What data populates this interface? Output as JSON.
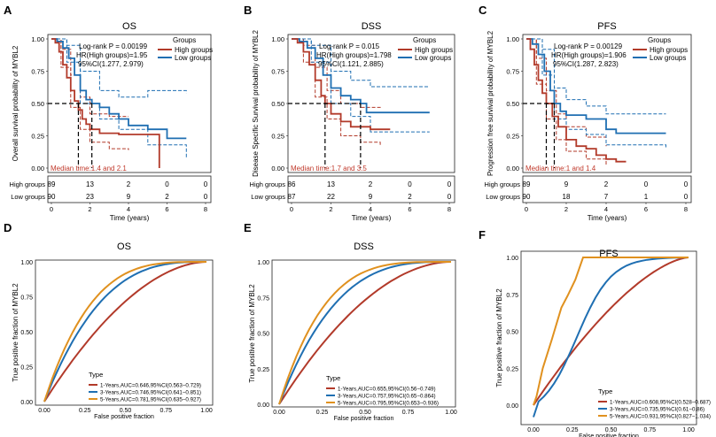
{
  "colors": {
    "high": "#b23a2a",
    "low": "#1f6fb2",
    "y1": "#b23a2a",
    "y3": "#1f6fb2",
    "y5": "#e0911f",
    "median": "#c0392b"
  },
  "km_panels": [
    {
      "letter": "A",
      "title": "OS",
      "ylabel": "Overall survival probability of MYBL2",
      "stats": [
        "Log-rank P = 0.00199",
        "HR(High groups)=1.95",
        "95%CI(1.277, 2.979)"
      ],
      "legend_title": "Groups",
      "legend_high": "High groups",
      "legend_low": "Low groups",
      "median_text": "Median time:1.4 and 2.1",
      "medians": [
        1.4,
        2.1
      ],
      "yticks": [
        "0.00",
        "0.25",
        "0.50",
        "0.75",
        "1.00"
      ],
      "xticks": [
        "0",
        "2",
        "4",
        "6",
        "8"
      ],
      "xlabel": "Time (years)",
      "risk_labels": [
        "High groups",
        "Low groups"
      ],
      "risk_high": [
        "89",
        "13",
        "2",
        "0",
        "0"
      ],
      "risk_low": [
        "90",
        "23",
        "9",
        "2",
        "0"
      ],
      "high_curve": [
        [
          0,
          1.0
        ],
        [
          0.2,
          0.97
        ],
        [
          0.4,
          0.9
        ],
        [
          0.6,
          0.8
        ],
        [
          0.8,
          0.7
        ],
        [
          1.0,
          0.6
        ],
        [
          1.2,
          0.52
        ],
        [
          1.4,
          0.45
        ],
        [
          1.6,
          0.38
        ],
        [
          1.8,
          0.34
        ],
        [
          2.0,
          0.3
        ],
        [
          2.5,
          0.27
        ],
        [
          3.5,
          0.26
        ],
        [
          5.6,
          0.26
        ],
        [
          5.6,
          0.0
        ]
      ],
      "low_curve": [
        [
          0,
          1.0
        ],
        [
          0.3,
          0.98
        ],
        [
          0.6,
          0.93
        ],
        [
          0.9,
          0.85
        ],
        [
          1.2,
          0.72
        ],
        [
          1.5,
          0.6
        ],
        [
          1.8,
          0.53
        ],
        [
          2.1,
          0.5
        ],
        [
          2.5,
          0.47
        ],
        [
          3.0,
          0.42
        ],
        [
          3.5,
          0.38
        ],
        [
          4.0,
          0.33
        ],
        [
          5.0,
          0.3
        ],
        [
          6.0,
          0.23
        ],
        [
          7.0,
          0.23
        ]
      ],
      "high_ci": [
        [
          [
            0,
            1.0
          ],
          [
            0.5,
            0.92
          ],
          [
            1.0,
            0.72
          ],
          [
            1.5,
            0.55
          ],
          [
            2.0,
            0.42
          ],
          [
            3.0,
            0.4
          ],
          [
            4.0,
            0.4
          ]
        ],
        [
          [
            0,
            1.0
          ],
          [
            0.5,
            0.78
          ],
          [
            1.0,
            0.47
          ],
          [
            1.5,
            0.3
          ],
          [
            2.0,
            0.2
          ],
          [
            3.0,
            0.15
          ],
          [
            4.0,
            0.14
          ]
        ]
      ],
      "low_ci": [
        [
          [
            0,
            1.0
          ],
          [
            0.8,
            0.95
          ],
          [
            1.5,
            0.75
          ],
          [
            2.5,
            0.6
          ],
          [
            3.5,
            0.55
          ],
          [
            5.0,
            0.6
          ],
          [
            7.0,
            0.58
          ]
        ],
        [
          [
            0,
            1.0
          ],
          [
            0.8,
            0.82
          ],
          [
            1.5,
            0.5
          ],
          [
            2.5,
            0.38
          ],
          [
            3.5,
            0.3
          ],
          [
            5.0,
            0.18
          ],
          [
            7.0,
            0.08
          ]
        ]
      ]
    },
    {
      "letter": "B",
      "title": "DSS",
      "ylabel": "Disease Specific Survival probability of MYBL2",
      "stats": [
        "Log-rank P = 0.015",
        "HR(High groups)=1.798",
        "95%CI(1.121, 2.885)"
      ],
      "legend_title": "Groups",
      "legend_high": "High groups",
      "legend_low": "Low groups",
      "median_text": "Median time:1.7 and 3.5",
      "medians": [
        1.7,
        3.5
      ],
      "yticks": [
        "0.00",
        "0.25",
        "0.50",
        "0.75",
        "1.00"
      ],
      "xticks": [
        "0",
        "2",
        "4",
        "6",
        "8"
      ],
      "xlabel": "Time (years)",
      "risk_labels": [
        "High groups",
        "Low groups"
      ],
      "risk_high": [
        "86",
        "13",
        "2",
        "0",
        "0"
      ],
      "risk_low": [
        "87",
        "22",
        "9",
        "2",
        "0"
      ],
      "high_curve": [
        [
          0,
          1.0
        ],
        [
          0.3,
          0.97
        ],
        [
          0.6,
          0.9
        ],
        [
          0.9,
          0.8
        ],
        [
          1.2,
          0.68
        ],
        [
          1.5,
          0.56
        ],
        [
          1.7,
          0.5
        ],
        [
          2.0,
          0.42
        ],
        [
          2.5,
          0.36
        ],
        [
          3.0,
          0.32
        ],
        [
          4.0,
          0.3
        ],
        [
          5.0,
          0.3
        ]
      ],
      "low_curve": [
        [
          0,
          1.0
        ],
        [
          0.4,
          0.98
        ],
        [
          0.8,
          0.93
        ],
        [
          1.2,
          0.85
        ],
        [
          1.6,
          0.72
        ],
        [
          2.0,
          0.62
        ],
        [
          2.5,
          0.56
        ],
        [
          3.0,
          0.53
        ],
        [
          3.5,
          0.5
        ],
        [
          3.8,
          0.43
        ],
        [
          5.0,
          0.43
        ],
        [
          7.0,
          0.43
        ]
      ],
      "high_ci": [
        [
          [
            0,
            1.0
          ],
          [
            0.6,
            0.95
          ],
          [
            1.2,
            0.78
          ],
          [
            1.8,
            0.6
          ],
          [
            2.5,
            0.5
          ],
          [
            3.5,
            0.47
          ],
          [
            4.5,
            0.46
          ]
        ],
        [
          [
            0,
            1.0
          ],
          [
            0.6,
            0.82
          ],
          [
            1.2,
            0.55
          ],
          [
            1.8,
            0.38
          ],
          [
            2.5,
            0.25
          ],
          [
            3.5,
            0.2
          ],
          [
            4.5,
            0.18
          ]
        ]
      ],
      "low_ci": [
        [
          [
            0,
            1.0
          ],
          [
            1.0,
            0.95
          ],
          [
            2.0,
            0.75
          ],
          [
            3.0,
            0.68
          ],
          [
            4.0,
            0.63
          ],
          [
            7.0,
            0.63
          ]
        ],
        [
          [
            0,
            1.0
          ],
          [
            1.0,
            0.82
          ],
          [
            2.0,
            0.5
          ],
          [
            3.0,
            0.4
          ],
          [
            4.0,
            0.28
          ],
          [
            7.0,
            0.28
          ]
        ]
      ]
    },
    {
      "letter": "C",
      "title": "PFS",
      "ylabel": "Progression free survival probability of MYBL2",
      "stats": [
        "Log-rank P = 0.00129",
        "HR(High groups)=1.906",
        "95%CI(1.287, 2.823)"
      ],
      "legend_title": "Groups",
      "legend_high": "High groups",
      "legend_low": "Low groups",
      "median_text": "Median time:1 and 1.4",
      "medians": [
        1.0,
        1.4
      ],
      "yticks": [
        "0.00",
        "0.25",
        "0.50",
        "0.75",
        "1.00"
      ],
      "xticks": [
        "0",
        "2",
        "4",
        "6",
        "8"
      ],
      "xlabel": "Time (years)",
      "risk_labels": [
        "High groups",
        "Low groups"
      ],
      "risk_high": [
        "89",
        "9",
        "2",
        "0",
        "0"
      ],
      "risk_low": [
        "90",
        "18",
        "7",
        "1",
        "0"
      ],
      "high_curve": [
        [
          0,
          1.0
        ],
        [
          0.2,
          0.92
        ],
        [
          0.4,
          0.8
        ],
        [
          0.6,
          0.68
        ],
        [
          0.8,
          0.58
        ],
        [
          1.0,
          0.5
        ],
        [
          1.3,
          0.4
        ],
        [
          1.6,
          0.32
        ],
        [
          2.0,
          0.22
        ],
        [
          2.5,
          0.17
        ],
        [
          3.0,
          0.15
        ],
        [
          3.5,
          0.1
        ],
        [
          4.0,
          0.07
        ],
        [
          4.5,
          0.05
        ],
        [
          5.0,
          0.05
        ]
      ],
      "low_curve": [
        [
          0,
          1.0
        ],
        [
          0.3,
          0.96
        ],
        [
          0.6,
          0.88
        ],
        [
          0.9,
          0.75
        ],
        [
          1.2,
          0.6
        ],
        [
          1.4,
          0.5
        ],
        [
          1.7,
          0.44
        ],
        [
          2.0,
          0.41
        ],
        [
          3.0,
          0.38
        ],
        [
          4.0,
          0.3
        ],
        [
          4.5,
          0.27
        ],
        [
          5.5,
          0.27
        ],
        [
          7.0,
          0.27
        ]
      ],
      "high_ci": [
        [
          [
            0,
            1.0
          ],
          [
            0.5,
            0.85
          ],
          [
            1.0,
            0.6
          ],
          [
            1.5,
            0.42
          ],
          [
            2.0,
            0.32
          ],
          [
            3.0,
            0.24
          ],
          [
            4.0,
            0.17
          ]
        ],
        [
          [
            0,
            1.0
          ],
          [
            0.5,
            0.65
          ],
          [
            1.0,
            0.38
          ],
          [
            1.5,
            0.22
          ],
          [
            2.0,
            0.13
          ],
          [
            3.0,
            0.07
          ],
          [
            4.0,
            0.02
          ]
        ]
      ],
      "low_ci": [
        [
          [
            0,
            1.0
          ],
          [
            0.8,
            0.92
          ],
          [
            1.4,
            0.62
          ],
          [
            2.0,
            0.53
          ],
          [
            3.0,
            0.48
          ],
          [
            4.0,
            0.42
          ],
          [
            7.0,
            0.42
          ]
        ],
        [
          [
            0,
            1.0
          ],
          [
            0.8,
            0.72
          ],
          [
            1.4,
            0.38
          ],
          [
            2.0,
            0.3
          ],
          [
            3.0,
            0.26
          ],
          [
            4.0,
            0.18
          ],
          [
            7.0,
            0.15
          ]
        ]
      ]
    }
  ],
  "roc_panels": [
    {
      "letter": "D",
      "title": "OS",
      "ylabel": "True positive fraction of MYBL2",
      "xlabel": "False positive fraction",
      "ticks": [
        "0.00",
        "0.25",
        "0.50",
        "0.75",
        "1.00"
      ],
      "legend_title": "Type",
      "labels": [
        "1-Years,AUC=0.646,95%CI(0.563−0.729)",
        "3-Years,AUC=0.746,95%CI(0.641−0.851)",
        "5-Years,AUC=0.781,95%CI(0.635−0.927)"
      ],
      "aucs": [
        0.646,
        0.746,
        0.781
      ]
    },
    {
      "letter": "E",
      "title": "DSS",
      "ylabel": "True positive fraction of MYBL2",
      "xlabel": "False positive fraction",
      "ticks": [
        "0.00",
        "0.25",
        "0.50",
        "0.75",
        "1.00"
      ],
      "legend_title": "Type",
      "labels": [
        "1-Years,AUC=0.655,95%CI(0.56−0.749)",
        "3-Years,AUC=0.757,95%CI(0.65−0.864)",
        "5-Years,AUC=0.795,95%CI(0.653−0.936)"
      ],
      "aucs": [
        0.655,
        0.757,
        0.795
      ]
    },
    {
      "letter": "F",
      "title": "PFS",
      "ylabel": "True positive fraction of MYBL2",
      "xlabel": "False positive fraction",
      "ticks": [
        "0.00",
        "0.25",
        "0.50",
        "0.75",
        "1.00"
      ],
      "legend_title": "Type",
      "labels": [
        "1-Years,AUC=0.608,95%CI(0.528−0.687)",
        "3-Years,AUC=0.735,95%CI(0.61−0.86)",
        "5-Years,AUC=0.931,95%CI(0.827−1.034)"
      ],
      "aucs": [
        0.608,
        0.735,
        0.931
      ]
    }
  ],
  "chart_data": [
    {
      "type": "line",
      "title": "OS",
      "xlabel": "Time (years)",
      "ylabel": "Overall survival probability of MYBL2",
      "ylim": [
        0,
        1
      ],
      "xlim": [
        0,
        8
      ],
      "series": [
        {
          "name": "High groups"
        },
        {
          "name": "Low groups"
        }
      ]
    },
    {
      "type": "line",
      "title": "DSS",
      "xlabel": "Time (years)",
      "ylabel": "Disease Specific Survival probability of MYBL2",
      "ylim": [
        0,
        1
      ],
      "xlim": [
        0,
        8
      ],
      "series": [
        {
          "name": "High groups"
        },
        {
          "name": "Low groups"
        }
      ]
    },
    {
      "type": "line",
      "title": "PFS",
      "xlabel": "Time (years)",
      "ylabel": "Progression free survival probability of MYBL2",
      "ylim": [
        0,
        1
      ],
      "xlim": [
        0,
        8
      ],
      "series": [
        {
          "name": "High groups"
        },
        {
          "name": "Low groups"
        }
      ]
    },
    {
      "type": "line",
      "title": "OS",
      "xlabel": "False positive fraction",
      "ylabel": "True positive fraction of MYBL2",
      "xlim": [
        0,
        1
      ],
      "ylim": [
        0,
        1
      ],
      "series": [
        {
          "name": "1-Years",
          "auc": 0.646
        },
        {
          "name": "3-Years",
          "auc": 0.746
        },
        {
          "name": "5-Years",
          "auc": 0.781
        }
      ]
    },
    {
      "type": "line",
      "title": "DSS",
      "xlabel": "False positive fraction",
      "ylabel": "True positive fraction of MYBL2",
      "xlim": [
        0,
        1
      ],
      "ylim": [
        0,
        1
      ],
      "series": [
        {
          "name": "1-Years",
          "auc": 0.655
        },
        {
          "name": "3-Years",
          "auc": 0.757
        },
        {
          "name": "5-Years",
          "auc": 0.795
        }
      ]
    },
    {
      "type": "line",
      "title": "PFS",
      "xlabel": "False positive fraction",
      "ylabel": "True positive fraction of MYBL2",
      "xlim": [
        0,
        1
      ],
      "ylim": [
        0,
        1
      ],
      "series": [
        {
          "name": "1-Years",
          "auc": 0.608
        },
        {
          "name": "3-Years",
          "auc": 0.735
        },
        {
          "name": "5-Years",
          "auc": 0.931
        }
      ]
    }
  ]
}
